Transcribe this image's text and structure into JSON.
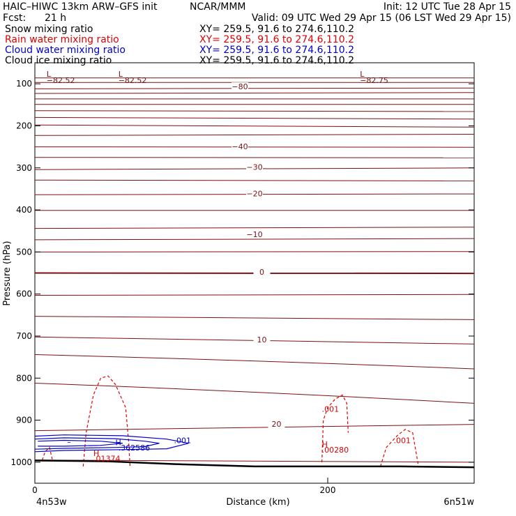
{
  "header": {
    "title_left": "HAIC–HIWC 13km ARW–GFS init",
    "center": "NCAR/MMM",
    "init": "Init: 12 UTC Tue 28 Apr 15",
    "fcst_label": "Fcst:",
    "fcst_value": "21 h",
    "valid": "Valid: 09 UTC Wed 29 Apr 15 (06 LST Wed 29 Apr 15)"
  },
  "legend": [
    {
      "name": "Snow mixing ratio",
      "xy": "XY= 259.5, 91.6 to 274.6,110.2",
      "color": "#000000"
    },
    {
      "name": "Rain water mixing ratio",
      "xy": "XY= 259.5, 91.6 to 274.6,110.2",
      "color": "#e00000"
    },
    {
      "name": "Cloud water mixing ratio",
      "xy": "XY= 259.5, 91.6 to 274.6,110.2",
      "color": "#0000cc"
    },
    {
      "name": "Cloud ice mixing ratio",
      "xy": "XY= 259.5, 91.6 to 274.6,110.2",
      "color": "#000000"
    }
  ],
  "chart_data": {
    "type": "line",
    "xlabel": "Distance (km)",
    "ylabel": "Pressure (hPa)",
    "xlim": [
      0,
      300
    ],
    "ylim": [
      1050,
      50
    ],
    "x_ticks": [
      {
        "value": 0,
        "label": "0"
      },
      {
        "value": 200,
        "label": "200"
      }
    ],
    "y_ticks": [
      100,
      200,
      300,
      400,
      500,
      600,
      700,
      800,
      900,
      1000
    ],
    "x_end_labels": {
      "left": "4n53w",
      "right": "6n51w"
    },
    "colors": {
      "temperature": "#7a1010",
      "rain": "#e00000",
      "cloud_water": "#0000cc",
      "ground": "#000000"
    },
    "temperature_isotherm_labels": [
      {
        "value": "−80",
        "x": 140,
        "p": 110
      },
      {
        "value": "−40",
        "x": 140,
        "p": 252
      },
      {
        "value": "−30",
        "x": 150,
        "p": 301
      },
      {
        "value": "−20",
        "x": 150,
        "p": 364
      },
      {
        "value": "−10",
        "x": 150,
        "p": 461
      },
      {
        "value": "0",
        "x": 155,
        "p": 551
      },
      {
        "value": "10",
        "x": 155,
        "p": 712
      },
      {
        "value": "20",
        "x": 165,
        "p": 912
      }
    ],
    "temperature_isotherms_p": [
      {
        "left": 86,
        "right": 86
      },
      {
        "left": 97,
        "right": 97
      },
      {
        "left": 112,
        "right": 110
      },
      {
        "left": 123,
        "right": 121
      },
      {
        "left": 136,
        "right": 136
      },
      {
        "left": 149,
        "right": 149
      },
      {
        "left": 164,
        "right": 166
      },
      {
        "left": 180,
        "right": 184
      },
      {
        "left": 198,
        "right": 203
      },
      {
        "left": 223,
        "right": 220
      },
      {
        "left": 250,
        "right": 251
      },
      {
        "left": 275,
        "right": 276
      },
      {
        "left": 304,
        "right": 300
      },
      {
        "left": 329,
        "right": 331
      },
      {
        "left": 364,
        "right": 362
      },
      {
        "left": 401,
        "right": 401
      },
      {
        "left": 444,
        "right": 441
      },
      {
        "left": 471,
        "right": 468
      },
      {
        "left": 500,
        "right": 499
      },
      {
        "left": 550,
        "right": 551
      },
      {
        "left": 603,
        "right": 601
      },
      {
        "left": 653,
        "right": 661
      },
      {
        "left": 702,
        "right": 719
      },
      {
        "left": 744,
        "right": 778
      },
      {
        "left": 812,
        "right": 860
      },
      {
        "left": 925,
        "right": 910
      },
      {
        "left": 995,
        "right": 1000
      }
    ],
    "extrema_labels": [
      {
        "text": "L",
        "x": 8,
        "p": 83,
        "color": "temperature"
      },
      {
        "text": "−82.52",
        "x": 8,
        "p": 98,
        "color": "temperature"
      },
      {
        "text": "L",
        "x": 57,
        "p": 83,
        "color": "temperature"
      },
      {
        "text": "−82.52",
        "x": 57,
        "p": 98,
        "color": "temperature"
      },
      {
        "text": "L",
        "x": 222,
        "p": 83,
        "color": "temperature"
      },
      {
        "text": "−82.75",
        "x": 222,
        "p": 98,
        "color": "temperature"
      },
      {
        "text": "H",
        "x": 55,
        "p": 960,
        "color": "cloud_water"
      },
      {
        "text": ".362586",
        "x": 57,
        "p": 972,
        "color": "cloud_water"
      },
      {
        "text": ".001",
        "x": 95,
        "p": 955,
        "color": "cloud_water"
      },
      {
        "text": "–",
        "x": 22,
        "p": 958,
        "color": "cloud_water"
      },
      {
        "text": "H",
        "x": 40,
        "p": 985,
        "color": "rain"
      },
      {
        "text": ".01374",
        "x": 40,
        "p": 998,
        "color": "rain"
      },
      {
        "text": ".001",
        "x": 196,
        "p": 880,
        "color": "rain"
      },
      {
        "text": "H",
        "x": 196,
        "p": 964,
        "color": "rain"
      },
      {
        "text": ".00280",
        "x": 196,
        "p": 977,
        "color": "rain"
      },
      {
        "text": ".001",
        "x": 245,
        "p": 955,
        "color": "rain"
      }
    ],
    "series": [
      {
        "name": "Rain water mixing ratio",
        "contours": [
          {
            "x": [
              33,
              35,
              40,
              45,
              50,
              55,
              62,
              64,
              65
            ],
            "p": [
              1010,
              930,
              840,
              800,
              795,
              815,
              870,
              950,
              1010
            ]
          },
          {
            "x": [
              5,
              7,
              10,
              12
            ],
            "p": [
              995,
              975,
              965,
              995
            ]
          },
          {
            "x": [
              196,
              197,
              200,
              205,
              210,
              213,
              214
            ],
            "p": [
              1000,
              900,
              870,
              850,
              840,
              860,
              930
            ]
          },
          {
            "x": [
              236,
              240,
              248,
              253,
              258,
              262
            ],
            "p": [
              1010,
              965,
              935,
              922,
              930,
              1010
            ]
          }
        ]
      },
      {
        "name": "Cloud water mixing ratio",
        "contours": [
          {
            "x": [
              0,
              20,
              60,
              90,
              105,
              90,
              60,
              20,
              0
            ],
            "p": [
              938,
              935,
              937,
              945,
              955,
              968,
              970,
              972,
              975
            ]
          },
          {
            "x": [
              0,
              20,
              55,
              75,
              85,
              75,
              55,
              20,
              0
            ],
            "p": [
              945,
              942,
              944,
              950,
              955,
              963,
              965,
              967,
              969
            ]
          },
          {
            "x": [
              2,
              20,
              45,
              60,
              45,
              20,
              2
            ],
            "p": [
              950,
              948,
              950,
              955,
              960,
              962,
              962
            ]
          }
        ]
      }
    ],
    "ground_p": [
      {
        "x": 0,
        "p": 996
      },
      {
        "x": 50,
        "p": 998
      },
      {
        "x": 100,
        "p": 1005
      },
      {
        "x": 150,
        "p": 1010
      },
      {
        "x": 200,
        "p": 1010
      },
      {
        "x": 250,
        "p": 1010
      },
      {
        "x": 300,
        "p": 1012
      }
    ]
  }
}
